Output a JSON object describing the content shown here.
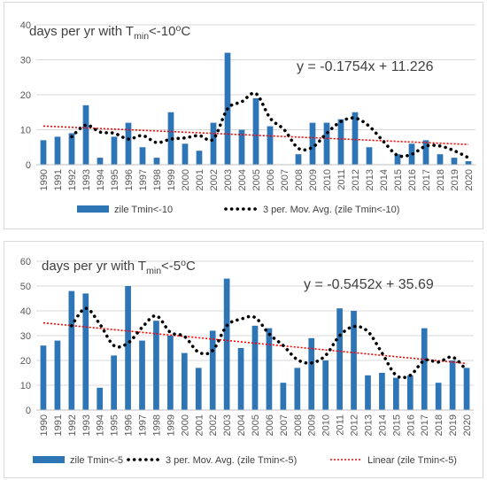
{
  "charts": [
    {
      "title_main": "days per yr with T",
      "title_sub": "min",
      "title_tail": "<-10",
      "title_sup": "o",
      "title_end": "C",
      "equation": "y = -0.1754x + 11.226",
      "legend": {
        "bars": "zile Tmin<-10",
        "moving_avg": "3 per. Mov. Avg. (zile Tmin<-10)"
      }
    },
    {
      "title_main": "days per yr with T",
      "title_sub": "min",
      "title_tail": "<-5",
      "title_sup": "o",
      "title_end": "C",
      "equation": "y = -0.5452x + 35.69",
      "legend": {
        "bars": "zile Tmin<-5",
        "moving_avg": "3 per. Mov. Avg. (zile Tmin<-5)",
        "linear": "Linear (zile Tmin<-5)"
      }
    }
  ],
  "chart_data": [
    {
      "type": "bar",
      "categories": [
        "1990",
        "1991",
        "1992",
        "1993",
        "1994",
        "1995",
        "1996",
        "1997",
        "1998",
        "1999",
        "2000",
        "2001",
        "2002",
        "2003",
        "2004",
        "2005",
        "2006",
        "2007",
        "2008",
        "2009",
        "2010",
        "2011",
        "2012",
        "2013",
        "2014",
        "2015",
        "2016",
        "2017",
        "2018",
        "2019",
        "2020"
      ],
      "series": [
        {
          "name": "zile Tmin<-10",
          "values": [
            7,
            8,
            9,
            17,
            2,
            8,
            12,
            5,
            2,
            15,
            6,
            4,
            12,
            32,
            10,
            19,
            11,
            0,
            3,
            12,
            12,
            13,
            15,
            5,
            0,
            3,
            6,
            7,
            3,
            2,
            1
          ]
        }
      ],
      "moving_average": {
        "name": "3 per. Mov. Avg. (zile Tmin<-10)",
        "period": 3
      },
      "trendline": {
        "slope": -0.1754,
        "intercept": 11.226
      },
      "ylim": [
        0,
        40
      ],
      "yticks": [
        0,
        10,
        20,
        30,
        40
      ],
      "colors": {
        "bar": "#2e75b6",
        "moving_avg": "#000000",
        "trend": "#ff0000"
      },
      "legend_position": "bottom",
      "grid": true
    },
    {
      "type": "bar",
      "categories": [
        "1990",
        "1991",
        "1992",
        "1993",
        "1994",
        "1995",
        "1996",
        "1997",
        "1998",
        "1999",
        "2000",
        "2001",
        "2002",
        "2003",
        "2004",
        "2005",
        "2006",
        "2007",
        "2008",
        "2009",
        "2010",
        "2011",
        "2012",
        "2013",
        "2014",
        "2015",
        "2016",
        "2017",
        "2018",
        "2019",
        "2020"
      ],
      "series": [
        {
          "name": "zile Tmin<-5",
          "values": [
            26,
            28,
            48,
            47,
            9,
            22,
            50,
            28,
            36,
            30,
            23,
            17,
            32,
            53,
            25,
            34,
            33,
            11,
            17,
            29,
            20,
            41,
            40,
            14,
            15,
            13,
            14,
            33,
            11,
            20,
            17
          ]
        }
      ],
      "moving_average": {
        "name": "3 per. Mov. Avg. (zile Tmin<-5)",
        "period": 3
      },
      "trendline": {
        "name": "Linear (zile Tmin<-5)",
        "slope": -0.5452,
        "intercept": 35.69
      },
      "ylim": [
        0,
        60
      ],
      "yticks": [
        0,
        10,
        20,
        30,
        40,
        50,
        60
      ],
      "colors": {
        "bar": "#2e75b6",
        "moving_avg": "#000000",
        "trend": "#ff0000"
      },
      "legend_position": "bottom",
      "grid": true
    }
  ]
}
